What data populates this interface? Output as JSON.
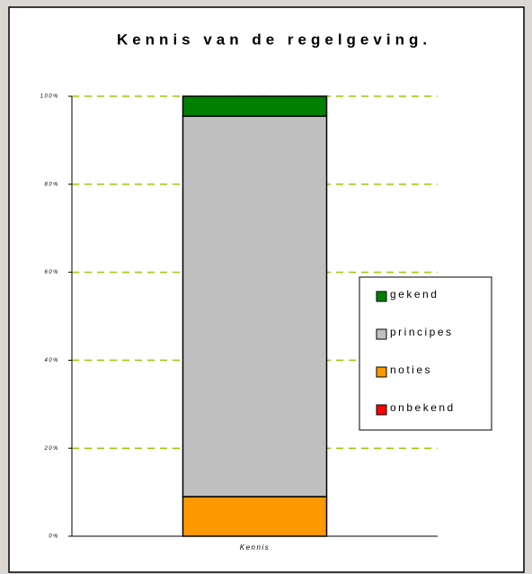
{
  "chart_data": {
    "type": "stacked_bar",
    "title": "Kennis van de regelgeving.",
    "categories": [
      "Kennis"
    ],
    "series": [
      {
        "name": "onbekend",
        "color": "#ff0000",
        "values": [
          0
        ]
      },
      {
        "name": "noties",
        "color": "#ff9900",
        "values": [
          9
        ]
      },
      {
        "name": "principes",
        "color": "#c0c0c0",
        "values": [
          86.5
        ]
      },
      {
        "name": "gekend",
        "color": "#008000",
        "values": [
          4.5
        ]
      }
    ],
    "ylim": [
      0,
      100
    ],
    "yticks": [
      {
        "value": 0,
        "label": "0%"
      },
      {
        "value": 20,
        "label": "20%"
      },
      {
        "value": 40,
        "label": "40%"
      },
      {
        "value": 60,
        "label": "60%"
      },
      {
        "value": 80,
        "label": "80%"
      },
      {
        "value": 100,
        "label": "100%"
      }
    ],
    "grid": true,
    "legend": "right"
  }
}
